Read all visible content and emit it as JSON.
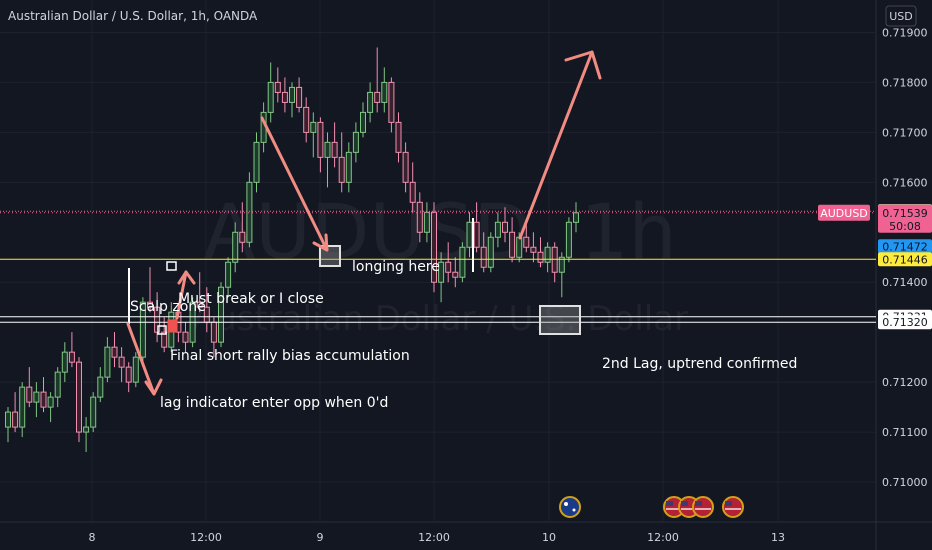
{
  "chart_data": {
    "type": "candlestick",
    "title": "Australian Dollar / U.S. Dollar, 1h, OANDA",
    "watermark_symbol": "AUDUSD, 1h",
    "watermark_name": "Australian Dollar / U.S. Dollar",
    "currency": "USD",
    "symbol": "AUDUSD",
    "countdown": "50:08",
    "ylim": [
      0.7092,
      0.71965
    ],
    "yticks": [
      {
        "value": 0.719,
        "label": "0.71900"
      },
      {
        "value": 0.718,
        "label": "0.71800"
      },
      {
        "value": 0.717,
        "label": "0.71700"
      },
      {
        "value": 0.716,
        "label": "0.71600"
      },
      {
        "value": 0.714,
        "label": "0.71400"
      },
      {
        "value": 0.712,
        "label": "0.71200"
      },
      {
        "value": 0.711,
        "label": "0.71100"
      },
      {
        "value": 0.71,
        "label": "0.71000"
      }
    ],
    "xticks": [
      {
        "label": "8"
      },
      {
        "label": "12:00"
      },
      {
        "label": "9"
      },
      {
        "label": "12:00"
      },
      {
        "label": "10"
      },
      {
        "label": "12:00"
      },
      {
        "label": "13"
      }
    ],
    "price_tags": [
      {
        "value": 0.71542,
        "label": "0.71542",
        "bg": "#fff9c4",
        "fg": "#131722"
      },
      {
        "value": 0.71472,
        "label": "0.71472",
        "bg": "#2196f3",
        "fg": "#131722"
      },
      {
        "value": 0.71446,
        "label": "0.71446",
        "bg": "#ffeb3b",
        "fg": "#131722"
      },
      {
        "value": 0.71331,
        "label": "0.71331",
        "bg": "#ffffff",
        "fg": "#131722"
      },
      {
        "value": 0.7132,
        "label": "0.71320",
        "bg": "#ffffff",
        "fg": "#131722"
      }
    ],
    "current_price": {
      "value": 0.71539,
      "label": "0.71539",
      "bg": "#f06292"
    },
    "horizontal_lines": [
      {
        "value": 0.71542,
        "color": "#e57373",
        "style": "dotted"
      },
      {
        "value": 0.71446,
        "color": "#ffeb3b",
        "style": "solid"
      },
      {
        "value": 0.71331,
        "color": "#ffffff",
        "style": "solid"
      },
      {
        "value": 0.7132,
        "color": "#ffffff",
        "style": "solid"
      }
    ],
    "annotations": [
      {
        "text": "Scalp zone",
        "value": 0.71385
      },
      {
        "text": "Must break or I close",
        "value": 0.71405
      },
      {
        "text": "Final short rally bias accumulation",
        "value": 0.71255
      },
      {
        "text": "lag indicator enter opp when 0'd",
        "value": 0.71165
      },
      {
        "text": "longing here",
        "value": 0.7145
      },
      {
        "text": "2nd Lag, uptrend confirmed",
        "value": 0.71235
      }
    ],
    "candles": [
      [
        0.7111,
        0.7115,
        0.7108,
        0.7114
      ],
      [
        0.7114,
        0.7118,
        0.711,
        0.7111
      ],
      [
        0.7111,
        0.712,
        0.7109,
        0.7119
      ],
      [
        0.7119,
        0.7123,
        0.7115,
        0.7116
      ],
      [
        0.7116,
        0.712,
        0.7113,
        0.7118
      ],
      [
        0.7118,
        0.7121,
        0.7114,
        0.7115
      ],
      [
        0.7115,
        0.7118,
        0.7112,
        0.7117
      ],
      [
        0.7117,
        0.7123,
        0.7115,
        0.7122
      ],
      [
        0.7122,
        0.7128,
        0.712,
        0.7126
      ],
      [
        0.7126,
        0.713,
        0.7123,
        0.7124
      ],
      [
        0.7124,
        0.7125,
        0.7108,
        0.711
      ],
      [
        0.711,
        0.7113,
        0.7106,
        0.7111
      ],
      [
        0.7111,
        0.7118,
        0.711,
        0.7117
      ],
      [
        0.7117,
        0.7123,
        0.7116,
        0.7121
      ],
      [
        0.7121,
        0.7129,
        0.712,
        0.7127
      ],
      [
        0.7127,
        0.713,
        0.7123,
        0.7125
      ],
      [
        0.7125,
        0.7127,
        0.712,
        0.7123
      ],
      [
        0.7123,
        0.7124,
        0.7118,
        0.712
      ],
      [
        0.712,
        0.7126,
        0.7119,
        0.7125
      ],
      [
        0.7125,
        0.7137,
        0.7124,
        0.7136
      ],
      [
        0.7136,
        0.7143,
        0.7134,
        0.7135
      ],
      [
        0.7135,
        0.7138,
        0.7128,
        0.713
      ],
      [
        0.713,
        0.7133,
        0.7126,
        0.7127
      ],
      [
        0.7127,
        0.7136,
        0.7126,
        0.7134
      ],
      [
        0.7134,
        0.7135,
        0.7128,
        0.713
      ],
      [
        0.713,
        0.7132,
        0.7126,
        0.7128
      ],
      [
        0.7128,
        0.7137,
        0.7127,
        0.7136
      ],
      [
        0.7136,
        0.7142,
        0.7134,
        0.7135
      ],
      [
        0.7135,
        0.7139,
        0.713,
        0.7132
      ],
      [
        0.7132,
        0.7133,
        0.7125,
        0.7128
      ],
      [
        0.7128,
        0.714,
        0.7127,
        0.7139
      ],
      [
        0.7139,
        0.7145,
        0.7137,
        0.7144
      ],
      [
        0.7144,
        0.7152,
        0.7142,
        0.715
      ],
      [
        0.715,
        0.7156,
        0.7146,
        0.7148
      ],
      [
        0.7148,
        0.7162,
        0.7147,
        0.716
      ],
      [
        0.716,
        0.717,
        0.7158,
        0.7168
      ],
      [
        0.7168,
        0.7176,
        0.7166,
        0.7174
      ],
      [
        0.7174,
        0.7184,
        0.7172,
        0.718
      ],
      [
        0.718,
        0.7183,
        0.7176,
        0.7178
      ],
      [
        0.7178,
        0.7181,
        0.7174,
        0.7176
      ],
      [
        0.7176,
        0.718,
        0.7173,
        0.7179
      ],
      [
        0.7179,
        0.7181,
        0.7174,
        0.7175
      ],
      [
        0.7175,
        0.7177,
        0.7168,
        0.717
      ],
      [
        0.717,
        0.7174,
        0.7165,
        0.7172
      ],
      [
        0.7172,
        0.7173,
        0.7162,
        0.7165
      ],
      [
        0.7165,
        0.717,
        0.7159,
        0.7168
      ],
      [
        0.7168,
        0.7172,
        0.7163,
        0.7165
      ],
      [
        0.7165,
        0.717,
        0.7158,
        0.716
      ],
      [
        0.716,
        0.7168,
        0.7158,
        0.7166
      ],
      [
        0.7166,
        0.7172,
        0.7164,
        0.717
      ],
      [
        0.717,
        0.7176,
        0.7169,
        0.7174
      ],
      [
        0.7174,
        0.718,
        0.7172,
        0.7178
      ],
      [
        0.7178,
        0.7187,
        0.7174,
        0.7176
      ],
      [
        0.7176,
        0.7183,
        0.7174,
        0.718
      ],
      [
        0.718,
        0.7181,
        0.717,
        0.7172
      ],
      [
        0.7172,
        0.7174,
        0.7164,
        0.7166
      ],
      [
        0.7166,
        0.7168,
        0.7158,
        0.716
      ],
      [
        0.716,
        0.7164,
        0.7154,
        0.7156
      ],
      [
        0.7156,
        0.7158,
        0.7148,
        0.715
      ],
      [
        0.715,
        0.7156,
        0.7148,
        0.7154
      ],
      [
        0.7154,
        0.7156,
        0.7138,
        0.714
      ],
      [
        0.714,
        0.7146,
        0.7136,
        0.7144
      ],
      [
        0.7144,
        0.7148,
        0.714,
        0.7142
      ],
      [
        0.7142,
        0.7145,
        0.7139,
        0.7141
      ],
      [
        0.7141,
        0.7148,
        0.714,
        0.7147
      ],
      [
        0.7147,
        0.7154,
        0.7145,
        0.7152
      ],
      [
        0.7152,
        0.7156,
        0.7146,
        0.7147
      ],
      [
        0.7147,
        0.715,
        0.7142,
        0.7143
      ],
      [
        0.7143,
        0.715,
        0.7142,
        0.7149
      ],
      [
        0.7149,
        0.7154,
        0.7147,
        0.7152
      ],
      [
        0.7152,
        0.7155,
        0.7148,
        0.715
      ],
      [
        0.715,
        0.7153,
        0.7144,
        0.7145
      ],
      [
        0.7145,
        0.715,
        0.7144,
        0.7149
      ],
      [
        0.7149,
        0.7152,
        0.7146,
        0.7147
      ],
      [
        0.7147,
        0.715,
        0.7144,
        0.7146
      ],
      [
        0.7146,
        0.7149,
        0.7143,
        0.7144
      ],
      [
        0.7144,
        0.7148,
        0.7142,
        0.7147
      ],
      [
        0.7147,
        0.7148,
        0.714,
        0.7142
      ],
      [
        0.7142,
        0.7146,
        0.7137,
        0.7145
      ],
      [
        0.7145,
        0.7153,
        0.7144,
        0.7152
      ],
      [
        0.7152,
        0.7156,
        0.715,
        0.71539
      ]
    ]
  }
}
